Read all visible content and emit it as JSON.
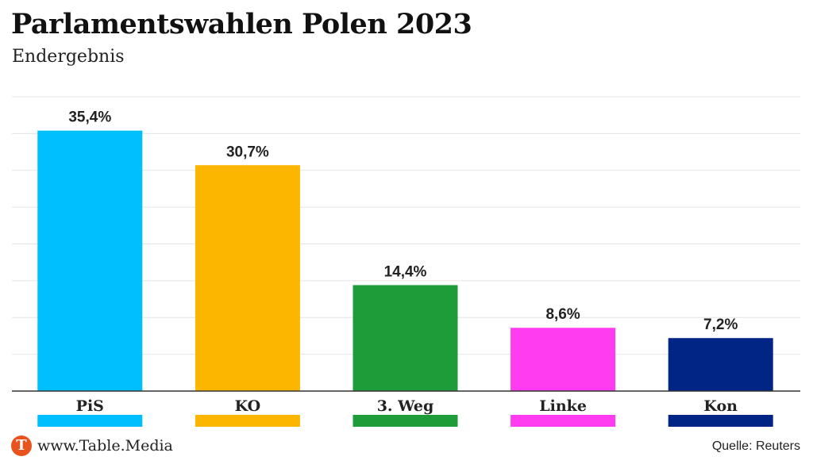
{
  "header": {
    "title": "Parlamentswahlen Polen 2023",
    "subtitle": "Endergebnis"
  },
  "footer": {
    "logo_letter": "T",
    "site": "www.Table.Media",
    "source": "Quelle: Reuters"
  },
  "chart_data": {
    "type": "bar",
    "title": "Parlamentswahlen Polen 2023",
    "subtitle": "Endergebnis",
    "categories": [
      "PiS",
      "KO",
      "3. Weg",
      "Linke",
      "Kon"
    ],
    "values": [
      35.4,
      30.7,
      14.4,
      8.6,
      7.2
    ],
    "value_labels": [
      "35,4%",
      "30,7%",
      "14,4%",
      "8,6%",
      "7,2%"
    ],
    "colors": [
      "#00bfff",
      "#fdb600",
      "#1e9c3a",
      "#ff3cf0",
      "#002584"
    ],
    "ylim": [
      0,
      40
    ],
    "grid": true,
    "legend": "color swatches below category labels",
    "xlabel": "",
    "ylabel": ""
  }
}
